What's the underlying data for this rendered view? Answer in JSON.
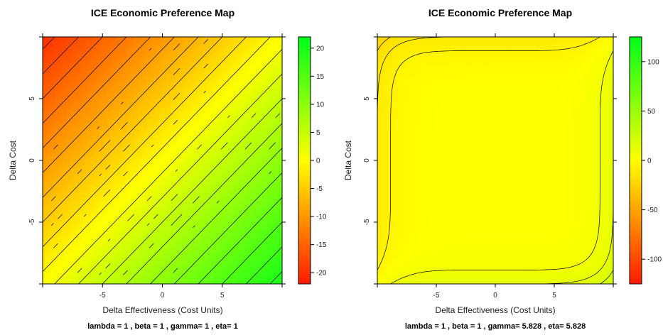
{
  "chart_data": [
    {
      "type": "heatmap",
      "title": "ICE Economic Preference Map",
      "xlabel": "Delta Effectiveness (Cost Units)",
      "ylabel": "Delta Cost",
      "subtitle": "lambda = 1 , beta = 1 , gamma= 1 , eta= 1",
      "xlim": [
        -10,
        10
      ],
      "ylim": [
        -10,
        10
      ],
      "x_ticks": [
        -5,
        0,
        5
      ],
      "y_ticks": [
        -5,
        0,
        5
      ],
      "x_tick_labels": [
        "-5",
        "0",
        "5"
      ],
      "y_tick_labels": [
        "-5",
        "0",
        "5"
      ],
      "colorbar": {
        "range": [
          -22,
          22
        ],
        "ticks": [
          -20,
          -15,
          -10,
          -5,
          0,
          5,
          10,
          15,
          20
        ],
        "tick_labels": [
          "-20",
          "-15",
          "-10",
          "-5",
          "0",
          "5",
          "10",
          "15",
          "20"
        ],
        "low_color": "#ff1a00",
        "mid_color": "#ffff00",
        "high_color": "#00ff1a"
      },
      "params": {
        "lambda": 1,
        "beta": 1,
        "gamma": 1,
        "eta": 1
      },
      "contour_step": 1
    },
    {
      "type": "heatmap",
      "title": "ICE Economic Preference Map",
      "xlabel": "Delta Effectiveness (Cost Units)",
      "ylabel": "Delta Cost",
      "subtitle": "lambda = 1 , beta = 1 , gamma= 5.828 , eta= 5.828",
      "xlim": [
        -10,
        10
      ],
      "ylim": [
        -10,
        10
      ],
      "x_ticks": [
        -5,
        0,
        5
      ],
      "y_ticks": [
        -5,
        0,
        5
      ],
      "x_tick_labels": [
        "-5",
        "0",
        "5"
      ],
      "y_tick_labels": [
        "-5",
        "0",
        "5"
      ],
      "colorbar": {
        "range": [
          -125,
          125
        ],
        "ticks": [
          -100,
          -50,
          0,
          50,
          100
        ],
        "tick_labels": [
          "-100",
          "-50",
          "0",
          "50",
          "100"
        ],
        "low_color": "#ff1a00",
        "mid_color": "#ffff00",
        "high_color": "#00ff1a"
      },
      "params": {
        "lambda": 1,
        "beta": 1,
        "gamma": 5.828,
        "eta": 5.828
      },
      "contour_step": 5
    }
  ]
}
